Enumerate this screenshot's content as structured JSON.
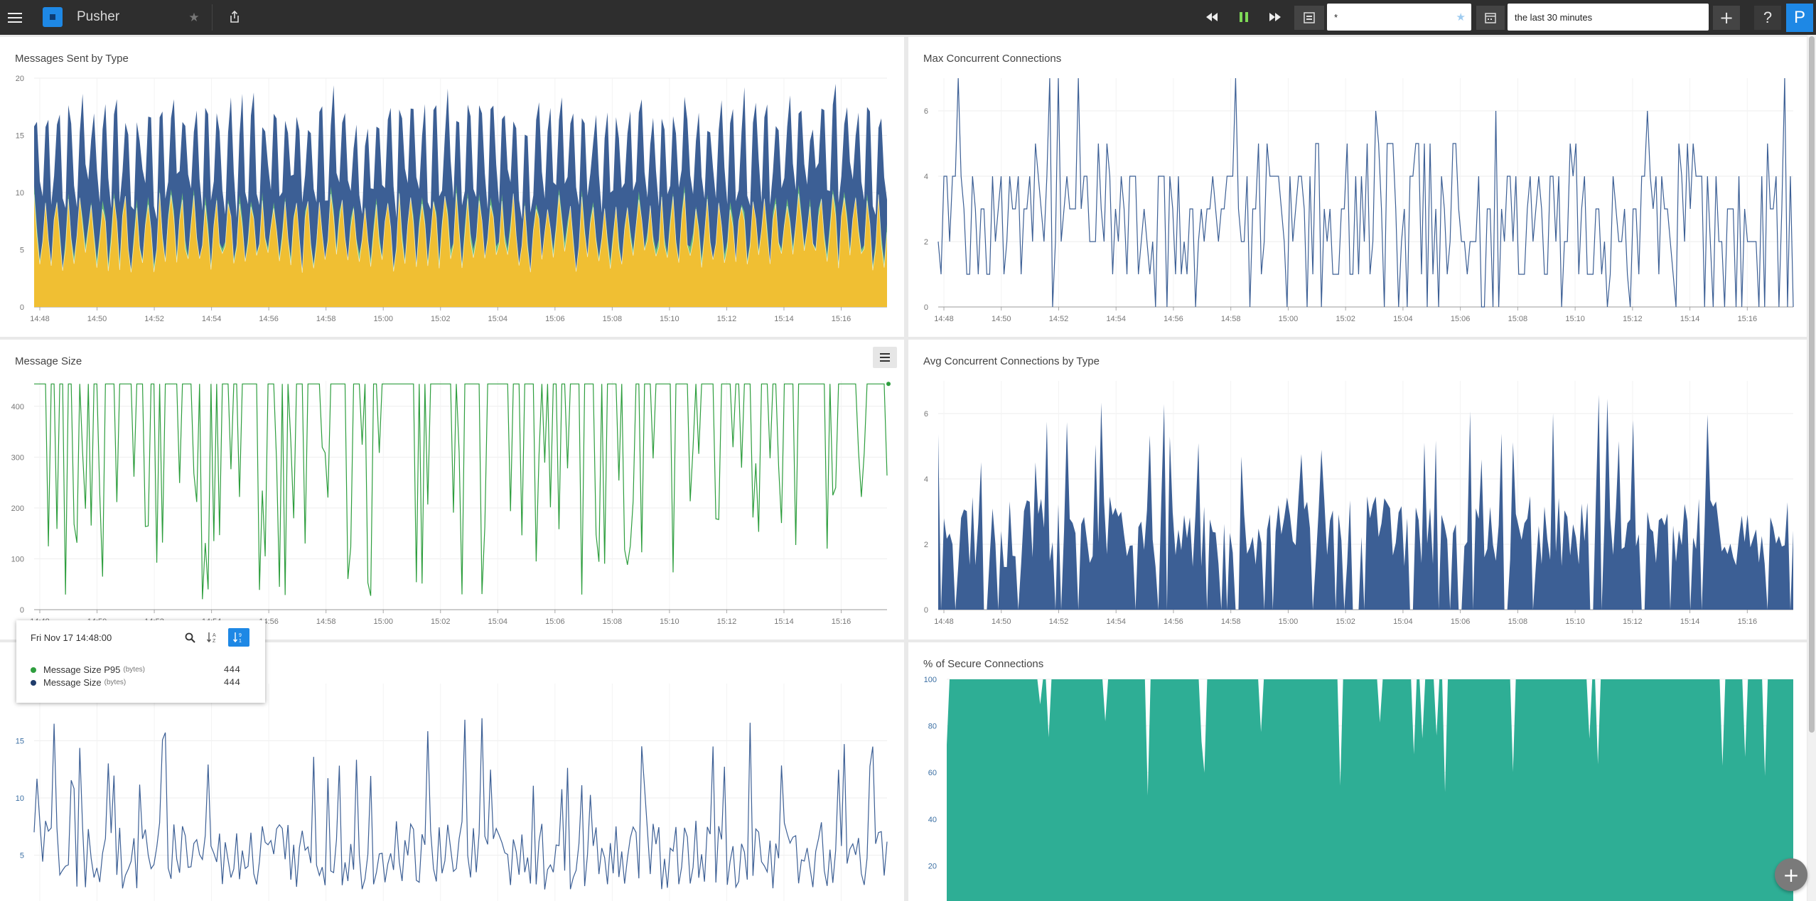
{
  "app": {
    "title": "Pusher",
    "avatar_letter": "P"
  },
  "toolbar": {
    "filter_value": "*",
    "time_range_value": "the last 30 minutes",
    "help_label": "?",
    "add_label": "+"
  },
  "colors": {
    "topbar": "#2e2e2e",
    "accent_blue": "#1e88e5",
    "series_blue": "#3c5f95",
    "series_yellow": "#f0bf33",
    "series_green": "#2e9e3e",
    "series_teal": "#2eae95"
  },
  "icons": {
    "menu": "hamburger-icon",
    "logo": "app-logo-icon",
    "star": "star-icon",
    "share": "share-icon",
    "rewind": "rewind-icon",
    "pause": "pause-icon",
    "forward": "fast-forward-icon",
    "layout": "layout-icon",
    "calendar": "calendar-icon",
    "panel_menu": "panel-menu-icon",
    "search": "search-icon",
    "sort_alpha": "sort-alpha-icon",
    "sort_value": "sort-value-icon"
  },
  "x_ticks": [
    "14:48",
    "14:50",
    "14:52",
    "14:54",
    "14:56",
    "14:58",
    "15:00",
    "15:02",
    "15:04",
    "15:06",
    "15:08",
    "15:10",
    "15:12",
    "15:14",
    "15:16"
  ],
  "panels": [
    {
      "title": "Messages Sent by Type"
    },
    {
      "title": "Max Concurrent Connections"
    },
    {
      "title": "Message Size"
    },
    {
      "title": "Avg Concurrent Connections by Type"
    },
    {
      "title": ""
    },
    {
      "title": "% of Secure Connections"
    }
  ],
  "tooltip": {
    "timestamp": "Fri Nov 17 14:48:00",
    "rows": [
      {
        "name": "Message Size P95",
        "unit": "(bytes)",
        "value": "444",
        "color": "#2e9e3e"
      },
      {
        "name": "Message Size",
        "unit": "(bytes)",
        "value": "444",
        "color": "#1f3c6b"
      }
    ]
  },
  "chart_data": [
    {
      "type": "area",
      "title": "Messages Sent by Type",
      "stacked": true,
      "x_range": [
        "14:48",
        "15:17"
      ],
      "ylim": [
        0,
        20
      ],
      "yticks": [
        0,
        5,
        10,
        15,
        20
      ],
      "series": [
        {
          "color": "#f0bf33",
          "pattern_low": 4,
          "pattern_high": 9
        },
        {
          "color": "#6bbf7a",
          "pattern_low": 0,
          "pattern_high": 1
        },
        {
          "color": "#3c5f95",
          "pattern_low": 3,
          "pattern_high": 10
        }
      ]
    },
    {
      "type": "line",
      "title": "Max Concurrent Connections",
      "x_range": [
        "14:48",
        "15:17"
      ],
      "ylim": [
        0,
        7
      ],
      "yticks": [
        0,
        2,
        4,
        6
      ],
      "series": [
        {
          "color": "#3c5f95",
          "value_range": [
            0,
            7
          ]
        }
      ]
    },
    {
      "type": "line",
      "title": "Message Size",
      "x_range": [
        "14:48",
        "15:17"
      ],
      "ylim": [
        0,
        450
      ],
      "yticks": [
        0,
        100,
        200,
        300,
        400
      ],
      "series": [
        {
          "color": "#2e9e3e",
          "max": 444,
          "min_dips": 20
        }
      ]
    },
    {
      "type": "area",
      "title": "Avg Concurrent Connections by Type",
      "x_range": [
        "14:48",
        "15:17"
      ],
      "ylim": [
        0,
        7
      ],
      "yticks": [
        0,
        2,
        4,
        6
      ],
      "series": [
        {
          "color": "#3c5f95",
          "value_range": [
            0,
            7
          ]
        }
      ]
    },
    {
      "type": "line",
      "title": "",
      "x_range": [
        "14:48",
        "15:17"
      ],
      "ylim": [
        0,
        20
      ],
      "yticks": [
        5,
        10,
        15
      ],
      "series": [
        {
          "color": "#3c5f95",
          "value_range": [
            1,
            17
          ]
        }
      ]
    },
    {
      "type": "area",
      "title": "% of Secure Connections",
      "x_range": [
        "14:48",
        "15:17"
      ],
      "ylim": [
        0,
        100
      ],
      "yticks": [
        20,
        40,
        60,
        80,
        100
      ],
      "series": [
        {
          "color": "#2eae95",
          "baseline": 100,
          "dips_to": 50
        }
      ]
    }
  ]
}
